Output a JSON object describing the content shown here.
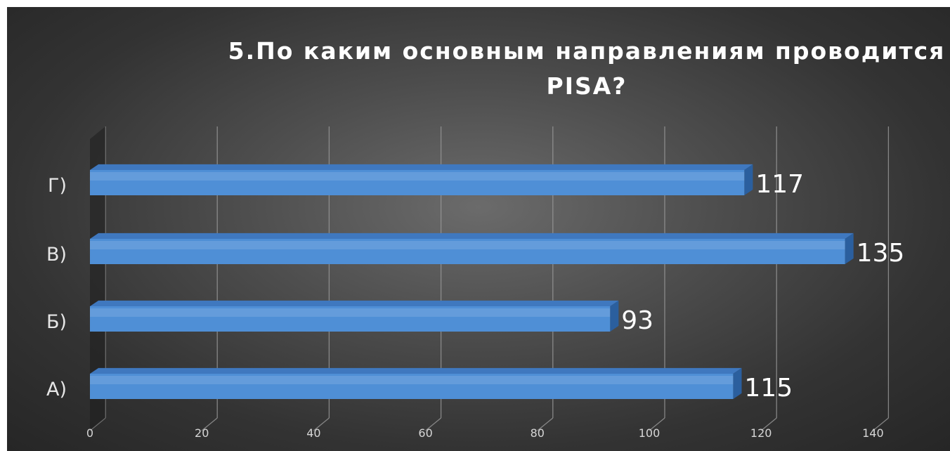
{
  "chart_data": {
    "type": "bar",
    "orientation": "horizontal",
    "style": "3d",
    "title": "5.По каким основным направлениям проводится PISA?",
    "categories": [
      "А)",
      "Б)",
      "В)",
      "Г)"
    ],
    "values": [
      115,
      93,
      135,
      117
    ],
    "data_labels": [
      "115",
      "93",
      "135",
      "117"
    ],
    "xlim": [
      0,
      140
    ],
    "x_ticks": [
      "0",
      "20",
      "40",
      "60",
      "80",
      "100",
      "120",
      "140"
    ],
    "grid": true,
    "legend": "none",
    "colors": {
      "bar": "#4f8fd6",
      "bar_top": "#3f78bf",
      "bar_side": "#2b5f9e",
      "background": "#4a4a4a",
      "text": "#ffffff"
    }
  }
}
